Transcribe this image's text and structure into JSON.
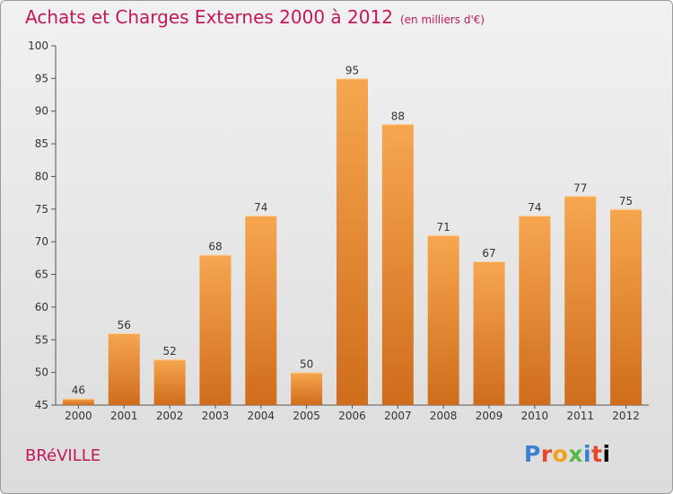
{
  "header": {
    "title": "Achats et Charges Externes 2000 à 2012",
    "unit": "(en milliers d'€)"
  },
  "footer": {
    "commune": "BRéVILLE",
    "logo": "Proxiti"
  },
  "colors": {
    "title": "#c2185b",
    "bar_light": "#f7a650",
    "bar_dark": "#cf6d1c"
  },
  "chart_data": {
    "type": "bar",
    "categories": [
      "2000",
      "2001",
      "2002",
      "2003",
      "2004",
      "2005",
      "2006",
      "2007",
      "2008",
      "2009",
      "2010",
      "2011",
      "2012"
    ],
    "values": [
      46,
      56,
      52,
      68,
      74,
      50,
      95,
      88,
      71,
      67,
      74,
      77,
      75
    ],
    "ylim": [
      45,
      100
    ],
    "yticks": [
      45,
      50,
      55,
      60,
      65,
      70,
      75,
      80,
      85,
      90,
      95,
      100
    ],
    "grid": false,
    "title": "Achats et Charges Externes 2000 à 2012",
    "xlabel": "",
    "ylabel": ""
  }
}
